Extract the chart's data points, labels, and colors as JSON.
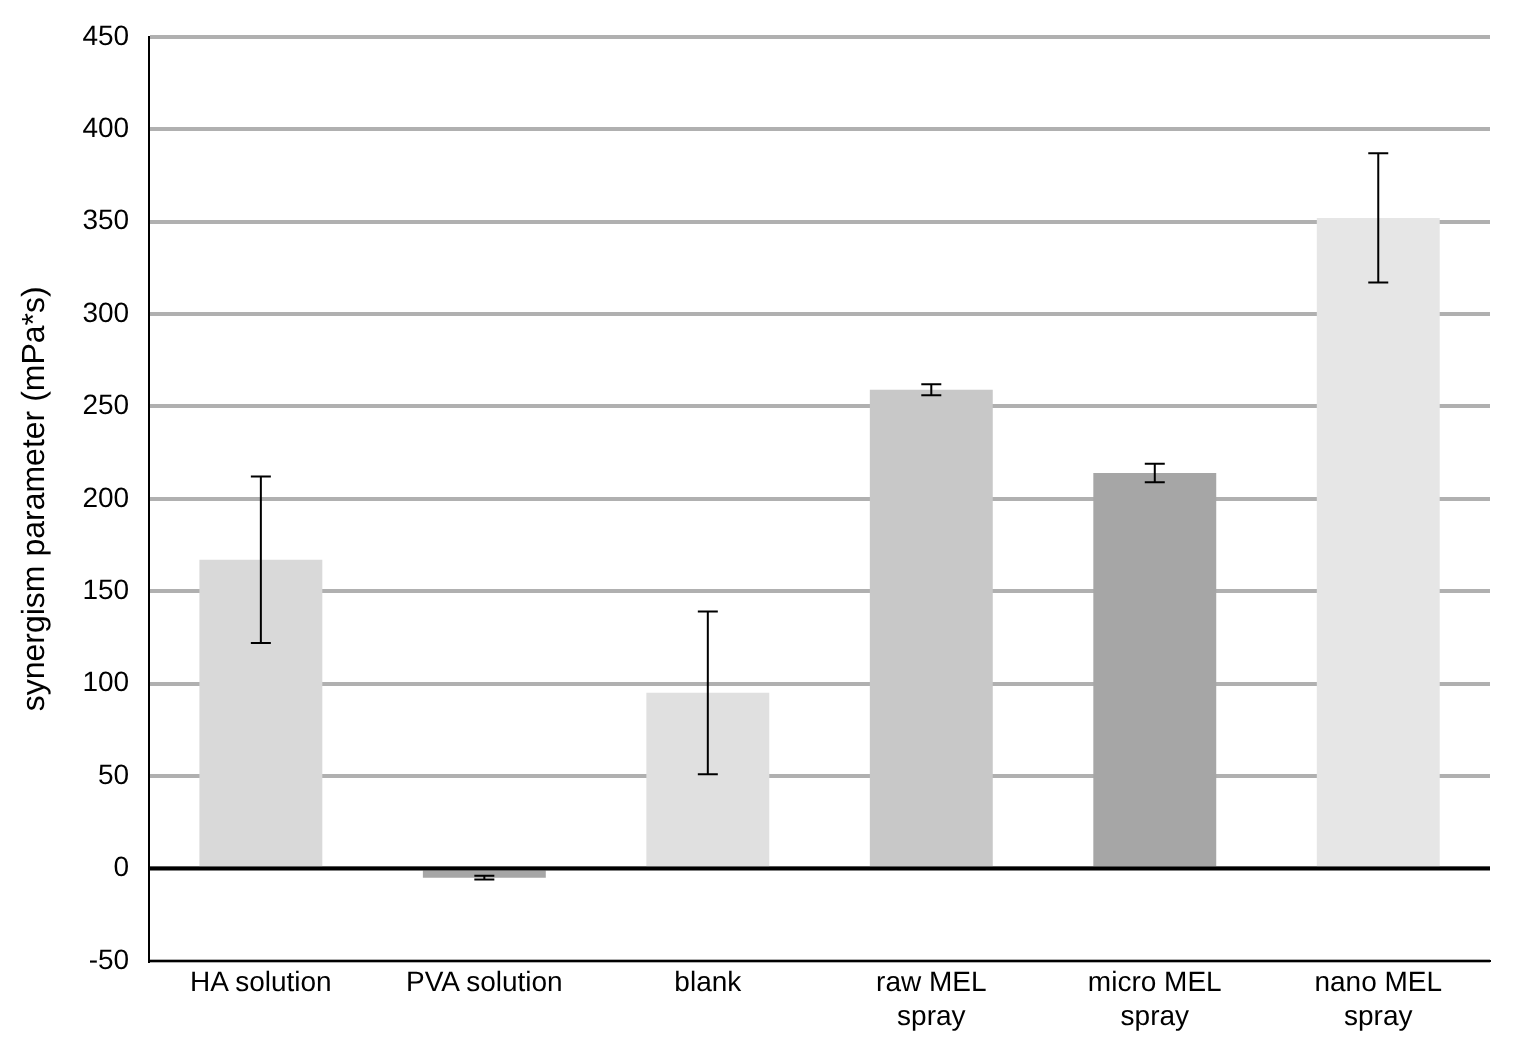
{
  "chart_data": {
    "type": "bar",
    "ylabel": "synergism parameter (mPa*s)",
    "categories": [
      "HA solution",
      "PVA solution",
      "blank",
      "raw MEL spray",
      "micro MEL spray",
      "nano MEL spray"
    ],
    "values": [
      167,
      -5,
      95,
      259,
      214,
      352
    ],
    "errors": [
      45,
      1,
      44,
      3,
      5,
      35
    ],
    "colors": [
      "#d9d9d9",
      "#a6a6a6",
      "#e0e0e0",
      "#c8c8c8",
      "#a6a6a6",
      "#e6e6e6"
    ],
    "ylim": [
      -50,
      450
    ],
    "yticks": [
      -50,
      0,
      50,
      100,
      150,
      200,
      250,
      300,
      350,
      400,
      450
    ],
    "grid": "y"
  }
}
